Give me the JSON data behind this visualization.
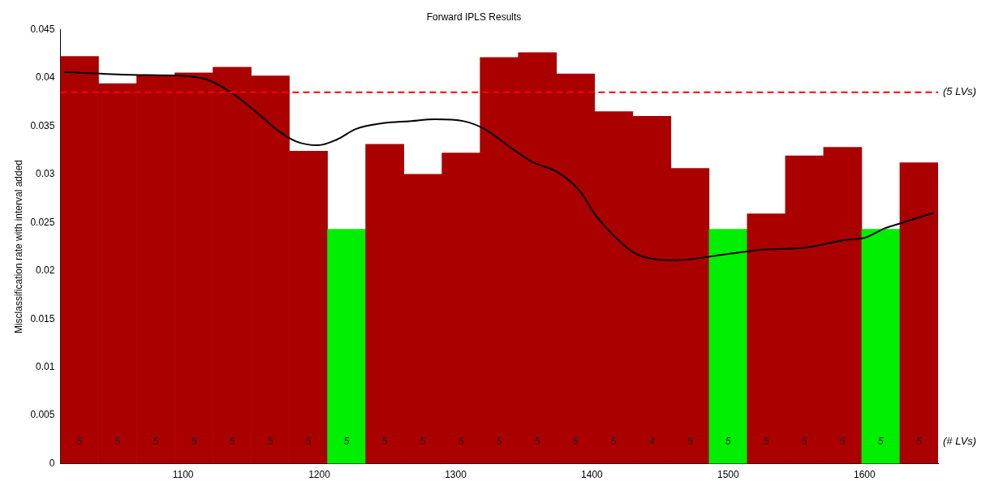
{
  "chart_data": {
    "type": "bar",
    "title": "Forward IPLS Results",
    "ylabel": "Misclassification rate with interval added",
    "xlim": [
      1010,
      1654
    ],
    "xticks": [
      1100,
      1200,
      1300,
      1400,
      1500,
      1600
    ],
    "ylim": [
      0,
      0.045
    ],
    "yticks": [
      0,
      0.005,
      0.01,
      0.015,
      0.02,
      0.025,
      0.03,
      0.035,
      0.04,
      0.045
    ],
    "grid": false,
    "legend": false,
    "series": [
      {
        "x": [
          1024,
          1052,
          1080,
          1108,
          1136,
          1164,
          1192,
          1220,
          1248,
          1276,
          1304,
          1332,
          1360,
          1388,
          1416,
          1444,
          1472,
          1500,
          1528,
          1556,
          1584,
          1612,
          1640
        ],
        "values": [
          0.0422,
          0.0394,
          0.0403,
          0.0405,
          0.0411,
          0.0402,
          0.0324,
          0.0243,
          0.0331,
          0.03,
          0.0322,
          0.0421,
          0.0426,
          0.0404,
          0.0365,
          0.036,
          0.0306,
          0.0243,
          0.0259,
          0.0319,
          0.0328,
          0.0243,
          0.0312
        ],
        "colors": [
          "#aa0000",
          "#aa0000",
          "#aa0000",
          "#aa0000",
          "#aa0000",
          "#aa0000",
          "#aa0000",
          "#00ee00",
          "#aa0000",
          "#aa0000",
          "#aa0000",
          "#aa0000",
          "#aa0000",
          "#aa0000",
          "#aa0000",
          "#aa0000",
          "#aa0000",
          "#00ee00",
          "#aa0000",
          "#aa0000",
          "#aa0000",
          "#00ee00",
          "#aa0000"
        ]
      },
      {
        "type": "line",
        "color": "#000000",
        "marker": "none",
        "line_style": "solid",
        "x": [
          1013,
          1062,
          1099,
          1118,
          1136,
          1155,
          1169,
          1183,
          1199,
          1213,
          1227,
          1247,
          1266,
          1285,
          1306,
          1321,
          1342,
          1356,
          1375,
          1391,
          1403,
          1417,
          1433,
          1462,
          1498,
          1527,
          1557,
          1586,
          1600,
          1615,
          1626,
          1651
        ],
        "values": [
          0.0406,
          0.0403,
          0.0402,
          0.0398,
          0.0384,
          0.0363,
          0.0346,
          0.0334,
          0.033,
          0.0336,
          0.0347,
          0.0353,
          0.0355,
          0.0357,
          0.0355,
          0.0347,
          0.0326,
          0.0313,
          0.0302,
          0.0283,
          0.0257,
          0.0235,
          0.0217,
          0.0211,
          0.0217,
          0.0222,
          0.0224,
          0.0232,
          0.0234,
          0.0244,
          0.0249,
          0.026
        ]
      }
    ],
    "ref_lines": [
      {
        "axis": "y",
        "value": 0.0385,
        "label": "(5 LVs)",
        "color": "#ff0000",
        "line_style": "dashed"
      }
    ],
    "annotations": [
      "5",
      "5",
      "5",
      "5",
      "5",
      "5",
      "5",
      "5",
      "5",
      "5",
      "5",
      "5",
      "5",
      "5",
      "5",
      "4",
      "5",
      "5",
      "5",
      "5",
      "5",
      "5",
      "5",
      "(# LVs)"
    ]
  }
}
